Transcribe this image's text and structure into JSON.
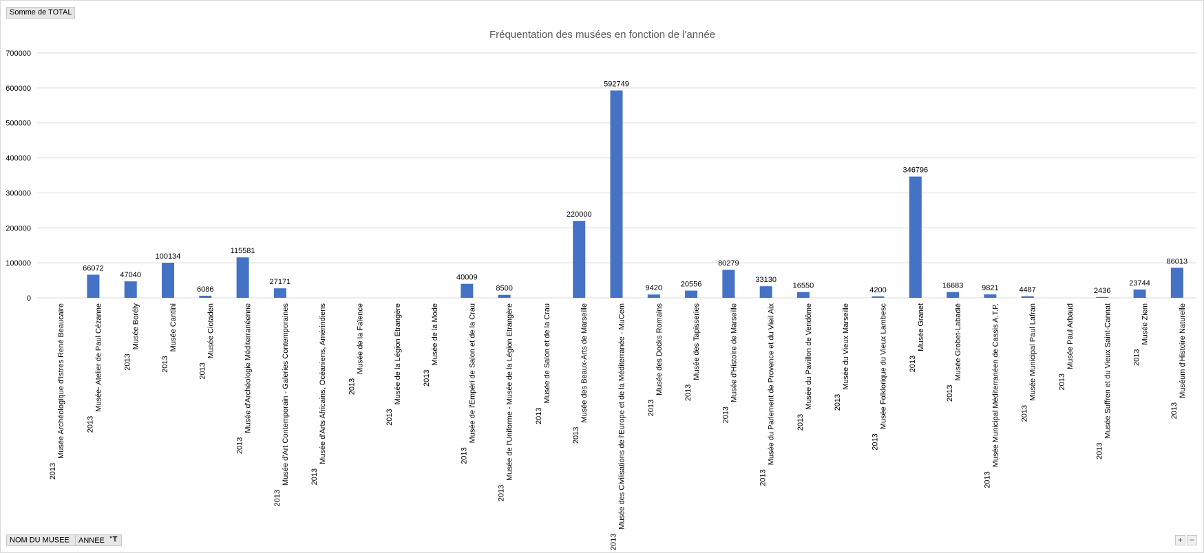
{
  "field_buttons": {
    "values_field": "Somme  de TOTAL",
    "axis_field_1": "NOM DU MUSEE",
    "axis_field_2": "ANNEE"
  },
  "icons": {
    "axis_field_1_icon": "dropdown-arrow-icon",
    "axis_field_2_icon": "filter-icon",
    "expand_icon": "plus-icon",
    "collapse_icon": "minus-icon"
  },
  "corner_buttons": {
    "expand": "+",
    "collapse": "−"
  },
  "colors": {
    "bar": "#4472c4",
    "gridline": "#d9d9d9",
    "axis_text": "#000000",
    "title_text": "#595959",
    "field_button_bg": "#e6e6e6"
  },
  "chart_data": {
    "type": "bar",
    "title": "Fréquentation des musées en fonction de l'année",
    "xlabel": "",
    "ylabel": "",
    "ylim": [
      0,
      700000
    ],
    "yticks": [
      0,
      100000,
      200000,
      300000,
      400000,
      500000,
      600000,
      700000
    ],
    "grid": true,
    "legend": "none",
    "categories": [
      {
        "year": "2013",
        "name": "Musée Archéologique d'Istres René Beaucaire"
      },
      {
        "year": "2013",
        "name": "Musée- Atelier de Paul Cézanne"
      },
      {
        "year": "2013",
        "name": "Musée Borély"
      },
      {
        "year": "2013",
        "name": "Musée Cantini"
      },
      {
        "year": "2013",
        "name": "Musée Ciotaden"
      },
      {
        "year": "2013",
        "name": "Musée d'Archéologie Méditerranéenne"
      },
      {
        "year": "2013",
        "name": "Musée d'Art Contemporain - Galeries Contemporaines"
      },
      {
        "year": "2013",
        "name": "Musée d'Arts Africains, Océaniens, Amérindiens"
      },
      {
        "year": "2013",
        "name": "Musée de la Faïence"
      },
      {
        "year": "2013",
        "name": "Musée de la Légion Etrangère"
      },
      {
        "year": "2013",
        "name": "Musée de la Mode"
      },
      {
        "year": "2013",
        "name": "Musée de l'Empéri de Salon et de la Crau"
      },
      {
        "year": "2013",
        "name": "Musée de l'Uniforme - Musée de la Légion Etrangère"
      },
      {
        "year": "2013",
        "name": "Musée de Salon et de la Crau"
      },
      {
        "year": "2013",
        "name": "Musée des Beaux-Arts de Marseille"
      },
      {
        "year": "2013",
        "name": "Musée des Civilisations de l'Europe et de la Méditerranée - MuCem"
      },
      {
        "year": "2013",
        "name": "Musée des Docks Romains"
      },
      {
        "year": "2013",
        "name": "Musée des Tapisseries"
      },
      {
        "year": "2013",
        "name": "Musée d'Histoire de Marseille"
      },
      {
        "year": "2013",
        "name": "Musée du Parlement de Provence et du Vieil Aix"
      },
      {
        "year": "2013",
        "name": "Musée du Pavillon de Vendôme"
      },
      {
        "year": "2013",
        "name": "Musée du Vieux Marseille"
      },
      {
        "year": "2013",
        "name": "Musée Folklorique du Vieux Lambesc"
      },
      {
        "year": "2013",
        "name": "Musée Granet"
      },
      {
        "year": "2013",
        "name": "Musée Grobet-Labadié"
      },
      {
        "year": "2013",
        "name": "Musée Municipal Méditerranéen de Cassis A.T.P."
      },
      {
        "year": "2013",
        "name": "Musée Municipal Paul Lafran"
      },
      {
        "year": "2013",
        "name": "Musée Paul Arbaud"
      },
      {
        "year": "2013",
        "name": "Musée Suffren et du Vieux Saint-Cannat"
      },
      {
        "year": "2013",
        "name": "Musée Ziem"
      },
      {
        "year": "2013",
        "name": "Muséum d'Histoire Naturelle"
      }
    ],
    "series": [
      {
        "values": [
          null,
          66072,
          47040,
          100134,
          6086,
          115581,
          27171,
          null,
          null,
          null,
          null,
          40009,
          8500,
          null,
          220000,
          592749,
          9420,
          20556,
          80279,
          33130,
          16550,
          null,
          4200,
          346796,
          16683,
          9821,
          4487,
          null,
          2436,
          23744,
          86013
        ]
      }
    ]
  }
}
